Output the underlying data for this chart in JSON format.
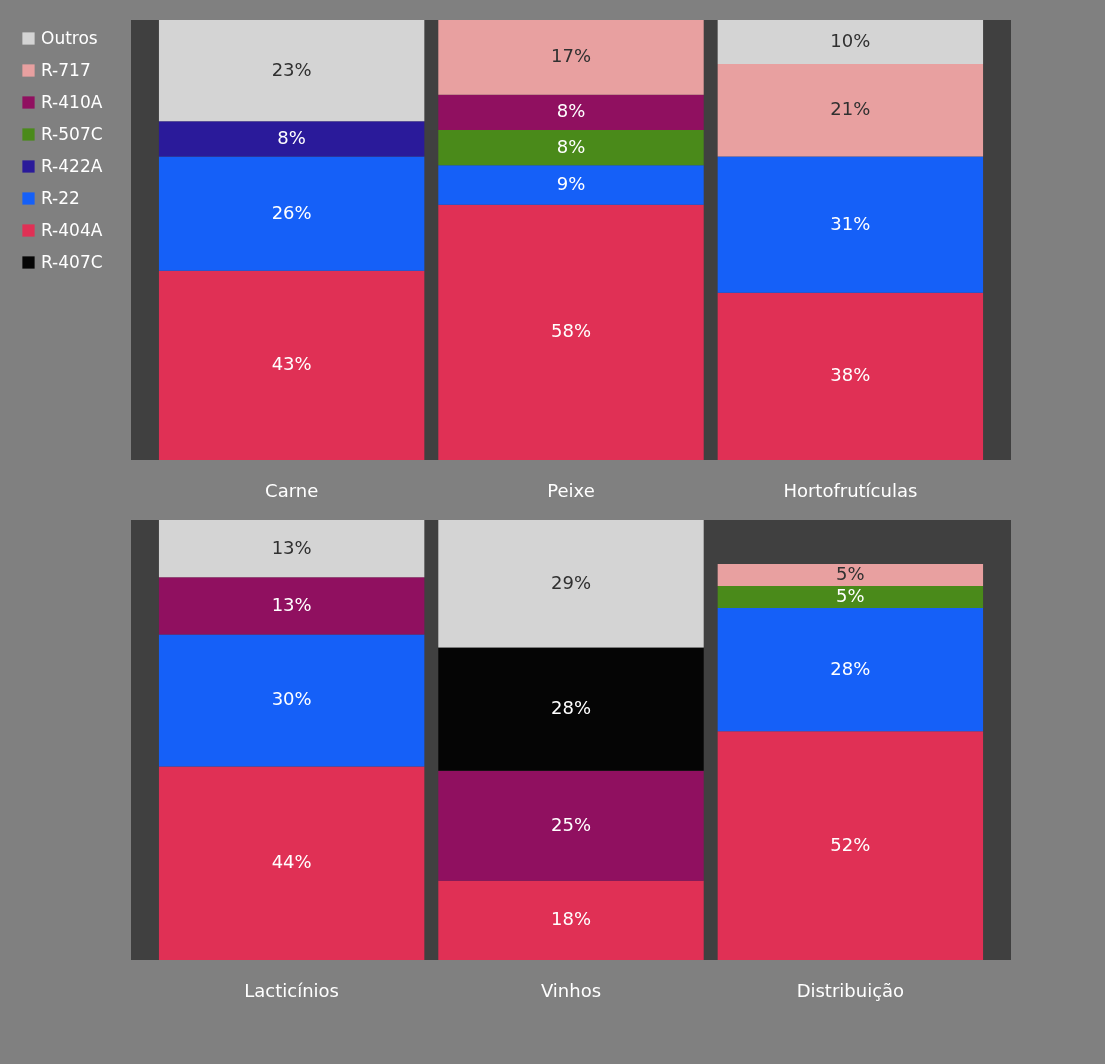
{
  "chart_data": [
    {
      "type": "bar",
      "stacked": true,
      "legend": "left",
      "tick_labels": "x",
      "categories": [
        "Carne",
        "Peixe",
        "Hortofrutículas"
      ],
      "series": [
        {
          "name": "R-404A",
          "color": "#e03055",
          "values": [
            43,
            58,
            38
          ],
          "value_labels": [
            "43%",
            "58%",
            "38%"
          ]
        },
        {
          "name": "R-22",
          "color": "#1560f8",
          "values": [
            26,
            9,
            31
          ],
          "value_labels": [
            "26%",
            "9%",
            "31%"
          ]
        },
        {
          "name": "R-422A",
          "color": "#2a1a9a",
          "values": [
            8,
            null,
            null
          ],
          "value_labels": [
            "8%",
            null,
            null
          ]
        },
        {
          "name": "R-507C",
          "color": "#4a8a1a",
          "values": [
            null,
            8,
            null
          ],
          "value_labels": [
            null,
            "8%",
            null
          ]
        },
        {
          "name": "R-410A",
          "color": "#901060",
          "values": [
            null,
            8,
            null
          ],
          "value_labels": [
            null,
            "8%",
            null
          ]
        },
        {
          "name": "R-717",
          "color": "#e8a0a0",
          "values": [
            null,
            17,
            21
          ],
          "value_labels": [
            null,
            "17%",
            "21%"
          ]
        },
        {
          "name": "Outros",
          "color": "#d4d4d4",
          "values": [
            23,
            null,
            10
          ],
          "value_labels": [
            "23%",
            null,
            "10%"
          ]
        }
      ]
    },
    {
      "type": "bar",
      "stacked": true,
      "legend": "left",
      "tick_labels": "x",
      "categories": [
        "Lacticínios",
        "Vinhos",
        "Distribuição"
      ],
      "series": [
        {
          "name": "R-404A",
          "color": "#e03055",
          "values": [
            44,
            18,
            52
          ],
          "value_labels": [
            "44%",
            "18%",
            "52%"
          ]
        },
        {
          "name": "R-22",
          "color": "#1560f8",
          "values": [
            30,
            null,
            28
          ],
          "value_labels": [
            "30%",
            null,
            "28%"
          ]
        },
        {
          "name": "R-507C",
          "color": "#4a8a1a",
          "values": [
            null,
            null,
            5
          ],
          "value_labels": [
            null,
            null,
            "5%"
          ]
        },
        {
          "name": "R-410A",
          "color": "#901060",
          "values": [
            13,
            25,
            null
          ],
          "value_labels": [
            "13%",
            "25%",
            null
          ]
        },
        {
          "name": "R-407C",
          "color": "#050505",
          "values": [
            null,
            28,
            null
          ],
          "value_labels": [
            null,
            "28%",
            null
          ]
        },
        {
          "name": "R-717",
          "color": "#e8a0a0",
          "values": [
            null,
            null,
            5
          ],
          "value_labels": [
            null,
            null,
            "5%"
          ]
        },
        {
          "name": "Outros",
          "color": "#d4d4d4",
          "values": [
            13,
            29,
            null
          ],
          "value_labels": [
            "13%",
            "29%",
            null
          ]
        }
      ]
    }
  ]
}
